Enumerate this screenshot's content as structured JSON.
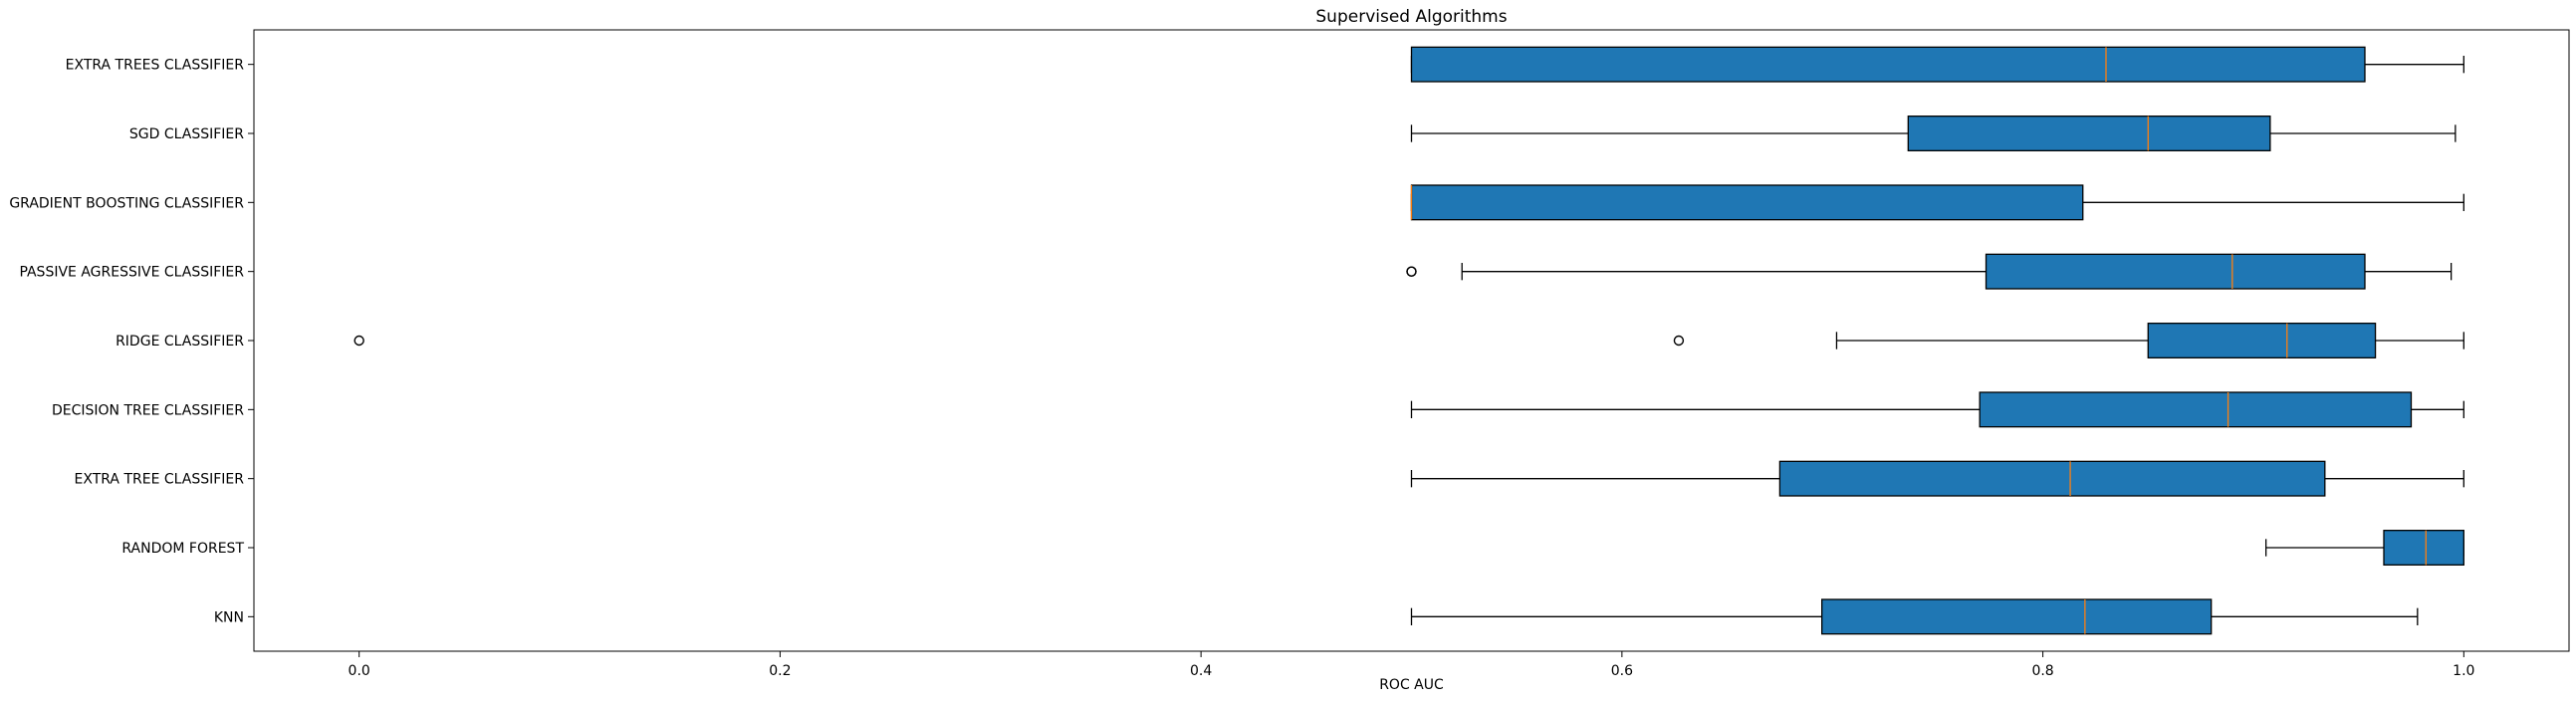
{
  "chart_data": {
    "type": "boxplot",
    "orientation": "horizontal",
    "title": "Supervised Algorithms",
    "xlabel": "ROC AUC",
    "ylabel": "",
    "xlim": [
      -0.05,
      1.05
    ],
    "xticks": [
      0.0,
      0.2,
      0.4,
      0.6,
      0.8,
      1.0
    ],
    "xtick_labels": [
      "0.0",
      "0.2",
      "0.4",
      "0.6",
      "0.8",
      "1.0"
    ],
    "grid": false,
    "box_color": "#1f77b4",
    "median_color": "#ff7f0e",
    "series": [
      {
        "name": "EXTRA TREES CLASSIFIER",
        "whisker_low": 0.5,
        "q1": 0.5,
        "median": 0.83,
        "q3": 0.953,
        "whisker_high": 1.0,
        "outliers": []
      },
      {
        "name": "SGD CLASSIFIER",
        "whisker_low": 0.5,
        "q1": 0.736,
        "median": 0.85,
        "q3": 0.908,
        "whisker_high": 0.996,
        "outliers": []
      },
      {
        "name": "GRADIENT BOOSTING CLASSIFIER",
        "whisker_low": 0.5,
        "q1": 0.5,
        "median": 0.5,
        "q3": 0.819,
        "whisker_high": 1.0,
        "outliers": []
      },
      {
        "name": "PASSIVE AGRESSIVE CLASSIFIER",
        "whisker_low": 0.524,
        "q1": 0.773,
        "median": 0.89,
        "q3": 0.953,
        "whisker_high": 0.994,
        "outliers": [
          0.5,
          0.5
        ]
      },
      {
        "name": "RIDGE CLASSIFIER",
        "whisker_low": 0.702,
        "q1": 0.85,
        "median": 0.916,
        "q3": 0.958,
        "whisker_high": 1.0,
        "outliers": [
          0.0,
          0.627
        ]
      },
      {
        "name": "DECISION TREE CLASSIFIER",
        "whisker_low": 0.5,
        "q1": 0.77,
        "median": 0.888,
        "q3": 0.975,
        "whisker_high": 1.0,
        "outliers": []
      },
      {
        "name": "EXTRA TREE CLASSIFIER",
        "whisker_low": 0.5,
        "q1": 0.675,
        "median": 0.813,
        "q3": 0.934,
        "whisker_high": 1.0,
        "outliers": []
      },
      {
        "name": "RANDOM FOREST",
        "whisker_low": 0.906,
        "q1": 0.962,
        "median": 0.982,
        "q3": 1.0,
        "whisker_high": 1.0,
        "outliers": []
      },
      {
        "name": "KNN",
        "whisker_low": 0.5,
        "q1": 0.695,
        "median": 0.82,
        "q3": 0.88,
        "whisker_high": 0.978,
        "outliers": []
      }
    ]
  }
}
